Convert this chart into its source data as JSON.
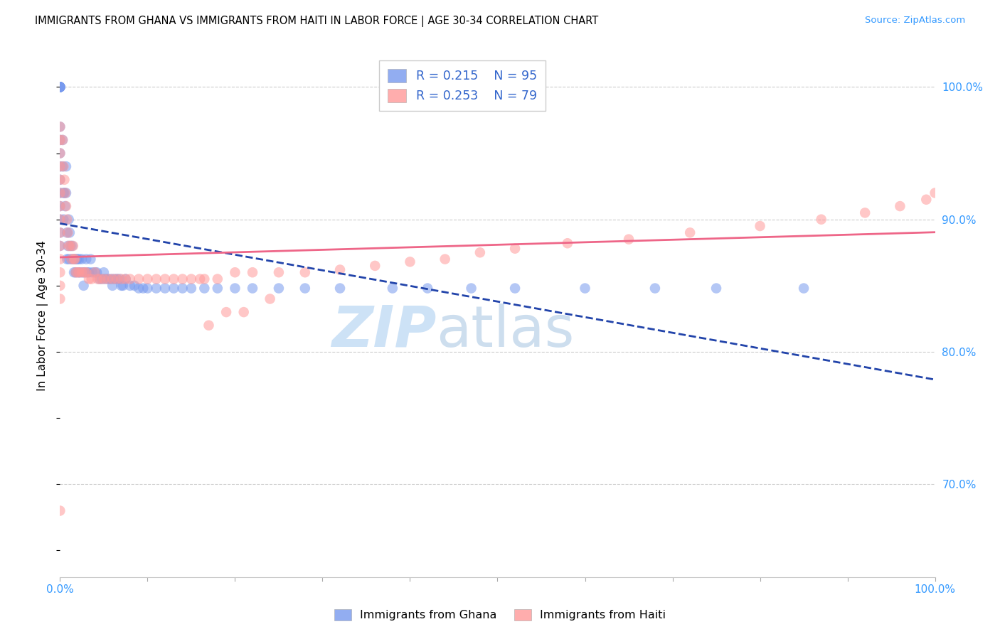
{
  "title": "IMMIGRANTS FROM GHANA VS IMMIGRANTS FROM HAITI IN LABOR FORCE | AGE 30-34 CORRELATION CHART",
  "source": "Source: ZipAtlas.com",
  "ylabel": "In Labor Force | Age 30-34",
  "legend_label1": "Immigrants from Ghana",
  "legend_label2": "Immigrants from Haiti",
  "R1": 0.215,
  "N1": 95,
  "R2": 0.253,
  "N2": 79,
  "color_ghana": "#7799ee",
  "color_haiti": "#ff9999",
  "color_trend_ghana": "#2244aa",
  "color_trend_haiti": "#ee6688",
  "watermark_zip": "ZIP",
  "watermark_atlas": "atlas",
  "ylim_min": 0.63,
  "ylim_max": 1.025,
  "xlim_min": 0.0,
  "xlim_max": 1.0,
  "yticks": [
    0.7,
    0.8,
    0.9,
    1.0
  ],
  "ytick_labels": [
    "70.0%",
    "80.0%",
    "90.0%",
    "100.0%"
  ],
  "xtick_labels_left": "0.0%",
  "xtick_labels_right": "100.0%",
  "ghana_x": [
    0.0,
    0.0,
    0.0,
    0.0,
    0.0,
    0.0,
    0.0,
    0.0,
    0.0,
    0.0,
    0.0,
    0.0,
    0.0,
    0.0,
    0.0,
    0.0,
    0.0,
    0.0,
    0.0,
    0.0,
    0.003,
    0.003,
    0.004,
    0.004,
    0.005,
    0.006,
    0.007,
    0.007,
    0.008,
    0.008,
    0.009,
    0.01,
    0.01,
    0.011,
    0.012,
    0.013,
    0.014,
    0.015,
    0.016,
    0.017,
    0.018,
    0.019,
    0.02,
    0.021,
    0.022,
    0.023,
    0.025,
    0.026,
    0.027,
    0.028,
    0.03,
    0.031,
    0.033,
    0.035,
    0.037,
    0.04,
    0.042,
    0.045,
    0.048,
    0.05,
    0.052,
    0.055,
    0.058,
    0.06,
    0.062,
    0.065,
    0.068,
    0.07,
    0.072,
    0.075,
    0.08,
    0.085,
    0.09,
    0.095,
    0.1,
    0.11,
    0.12,
    0.13,
    0.14,
    0.15,
    0.165,
    0.18,
    0.2,
    0.22,
    0.25,
    0.28,
    0.32,
    0.38,
    0.42,
    0.47,
    0.52,
    0.6,
    0.68,
    0.75,
    0.85
  ],
  "ghana_y": [
    1.0,
    1.0,
    1.0,
    1.0,
    1.0,
    1.0,
    1.0,
    1.0,
    1.0,
    1.0,
    0.97,
    0.96,
    0.95,
    0.94,
    0.93,
    0.92,
    0.91,
    0.9,
    0.89,
    0.88,
    0.96,
    0.94,
    0.92,
    0.9,
    0.92,
    0.91,
    0.94,
    0.92,
    0.89,
    0.87,
    0.88,
    0.9,
    0.87,
    0.89,
    0.88,
    0.87,
    0.88,
    0.87,
    0.86,
    0.87,
    0.86,
    0.87,
    0.87,
    0.86,
    0.87,
    0.86,
    0.87,
    0.86,
    0.85,
    0.86,
    0.87,
    0.86,
    0.86,
    0.87,
    0.86,
    0.86,
    0.86,
    0.855,
    0.855,
    0.86,
    0.855,
    0.855,
    0.855,
    0.85,
    0.855,
    0.855,
    0.855,
    0.85,
    0.85,
    0.855,
    0.85,
    0.85,
    0.848,
    0.848,
    0.848,
    0.848,
    0.848,
    0.848,
    0.848,
    0.848,
    0.848,
    0.848,
    0.848,
    0.848,
    0.848,
    0.848,
    0.848,
    0.848,
    0.848,
    0.848,
    0.848,
    0.848,
    0.848,
    0.848,
    0.848
  ],
  "haiti_x": [
    0.0,
    0.0,
    0.0,
    0.0,
    0.0,
    0.0,
    0.0,
    0.0,
    0.0,
    0.0,
    0.0,
    0.0,
    0.0,
    0.0,
    0.0,
    0.003,
    0.004,
    0.005,
    0.006,
    0.007,
    0.008,
    0.009,
    0.01,
    0.012,
    0.013,
    0.015,
    0.016,
    0.017,
    0.018,
    0.02,
    0.022,
    0.025,
    0.028,
    0.03,
    0.033,
    0.036,
    0.04,
    0.043,
    0.046,
    0.05,
    0.055,
    0.06,
    0.065,
    0.07,
    0.075,
    0.08,
    0.09,
    0.1,
    0.11,
    0.12,
    0.13,
    0.14,
    0.15,
    0.165,
    0.18,
    0.2,
    0.22,
    0.25,
    0.28,
    0.32,
    0.36,
    0.4,
    0.44,
    0.48,
    0.52,
    0.58,
    0.65,
    0.72,
    0.8,
    0.87,
    0.92,
    0.96,
    0.99,
    1.0,
    0.16,
    0.17,
    0.19,
    0.21,
    0.24
  ],
  "haiti_y": [
    0.97,
    0.96,
    0.95,
    0.94,
    0.93,
    0.92,
    0.91,
    0.9,
    0.89,
    0.88,
    0.87,
    0.86,
    0.85,
    0.84,
    0.68,
    0.96,
    0.94,
    0.93,
    0.92,
    0.91,
    0.9,
    0.89,
    0.88,
    0.88,
    0.87,
    0.88,
    0.87,
    0.87,
    0.86,
    0.86,
    0.86,
    0.86,
    0.86,
    0.86,
    0.855,
    0.855,
    0.86,
    0.855,
    0.855,
    0.855,
    0.855,
    0.855,
    0.855,
    0.855,
    0.855,
    0.855,
    0.855,
    0.855,
    0.855,
    0.855,
    0.855,
    0.855,
    0.855,
    0.855,
    0.855,
    0.86,
    0.86,
    0.86,
    0.86,
    0.862,
    0.865,
    0.868,
    0.87,
    0.875,
    0.878,
    0.882,
    0.885,
    0.89,
    0.895,
    0.9,
    0.905,
    0.91,
    0.915,
    0.92,
    0.855,
    0.82,
    0.83,
    0.83,
    0.84
  ]
}
